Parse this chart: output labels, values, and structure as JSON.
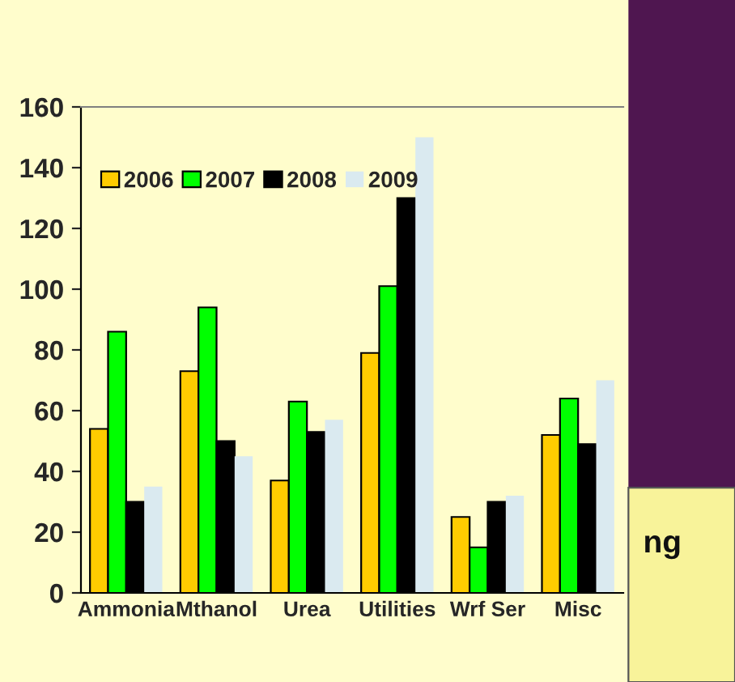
{
  "chart_data": {
    "type": "bar",
    "categories": [
      "Ammonia",
      "Mthanol",
      "Urea",
      "Utilities",
      "Wrf Ser",
      "Misc"
    ],
    "series": [
      {
        "name": "2006",
        "color": "#ffcc00",
        "values": [
          54,
          73,
          37,
          79,
          25,
          52
        ]
      },
      {
        "name": "2007",
        "color": "#00ff00",
        "values": [
          86,
          94,
          63,
          101,
          15,
          64
        ]
      },
      {
        "name": "2008",
        "color": "#000000",
        "values": [
          30,
          50,
          53,
          130,
          30,
          49
        ]
      },
      {
        "name": "2009",
        "color": "#daeaf0",
        "values": [
          35,
          45,
          57,
          150,
          32,
          70
        ]
      }
    ],
    "ylim": [
      0,
      160
    ],
    "yticks": [
      0,
      20,
      40,
      60,
      80,
      100,
      120,
      140,
      160
    ],
    "legend": "top left",
    "grid": false,
    "annotations": [
      "ng"
    ]
  }
}
